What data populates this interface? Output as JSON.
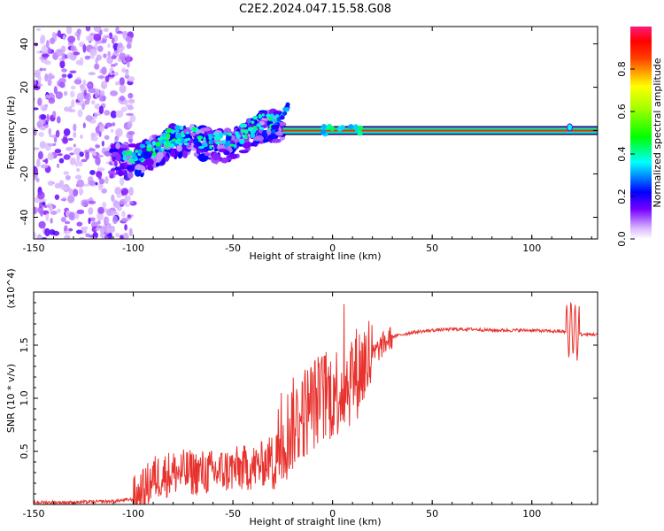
{
  "title": "C2E2.2024.047.15.58.G08",
  "chart_data": [
    {
      "type": "heatmap",
      "xlabel": "Height of straight line (km)",
      "ylabel": "Frequency (Hz)",
      "xlim": [
        -150,
        133
      ],
      "ylim": [
        -50,
        48
      ],
      "xticks": [
        -150,
        -100,
        -50,
        0,
        50,
        100
      ],
      "yticks": [
        -40,
        -20,
        0,
        20,
        40
      ],
      "colorbar": {
        "label": "Normalized spectral amplitude",
        "range": [
          0,
          1
        ],
        "ticks": [
          "0.0",
          "0.2",
          "0.4",
          "0.6",
          "0.8"
        ],
        "colors": [
          "#ffffff",
          "#7700ff",
          "#0000ff",
          "#00ffff",
          "#00ff00",
          "#ffff00",
          "#ff0000",
          "#ff0080"
        ]
      },
      "regions": [
        {
          "name": "noise",
          "x": [
            -150,
            -105
          ],
          "f": [
            -50,
            48
          ],
          "amplitude": 0.08
        },
        {
          "name": "scatter",
          "x": [
            -110,
            -25
          ],
          "f": [
            -25,
            12
          ],
          "amplitude": 0.4
        },
        {
          "name": "line",
          "x": [
            -25,
            133
          ],
          "f": [
            0,
            0
          ],
          "amplitude": 0.9
        }
      ]
    },
    {
      "type": "line",
      "xlabel": "Height of straight line (km)",
      "ylabel": "SNR (10 * v/v)",
      "yscale_label": "(x10^4)",
      "xlim": [
        -150,
        133
      ],
      "ylim": [
        0,
        2.0
      ],
      "xticks": [
        -150,
        -100,
        -50,
        0,
        50,
        100
      ],
      "yticks": [
        0.5,
        1.0,
        1.5
      ],
      "ytick_labels": [
        "0.5",
        "1.0",
        "1.5"
      ],
      "color": "#e8322d",
      "series": [
        {
          "x": [
            -150,
            -130,
            -110,
            -100,
            -95,
            -90,
            -80,
            -70,
            -60,
            -50,
            -40,
            -35,
            -30,
            -25,
            -20,
            -15,
            -10,
            -5,
            0,
            5,
            10,
            15,
            20,
            25,
            30,
            40,
            50,
            60,
            70,
            80,
            90,
            100,
            110,
            115,
            118,
            120,
            122,
            125,
            130,
            133
          ],
          "values": [
            0.02,
            0.02,
            0.03,
            0.05,
            0.12,
            0.25,
            0.3,
            0.3,
            0.3,
            0.33,
            0.35,
            0.38,
            0.45,
            0.6,
            0.75,
            0.85,
            0.95,
            1.0,
            1.05,
            1.1,
            1.2,
            1.3,
            1.4,
            1.5,
            1.58,
            1.62,
            1.64,
            1.65,
            1.65,
            1.64,
            1.64,
            1.64,
            1.63,
            1.63,
            1.62,
            1.68,
            1.62,
            1.6,
            1.6,
            1.6
          ]
        }
      ]
    }
  ]
}
